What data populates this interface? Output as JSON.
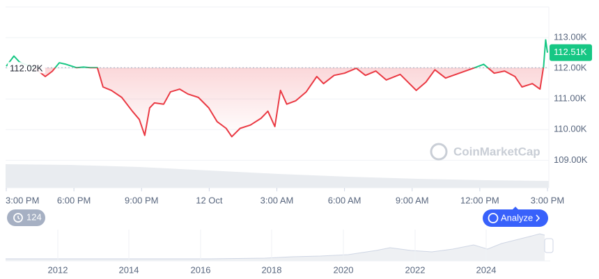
{
  "chart_data": {
    "type": "line",
    "x": [
      0,
      0.34,
      0.59,
      1.27,
      1.73,
      2.04,
      2.35,
      2.65,
      3.12,
      3.43,
      3.73,
      4.04,
      4.29,
      4.66,
      5.12,
      5.59,
      5.9,
      6.14,
      6.36,
      6.57,
      6.98,
      7.28,
      7.69,
      8.06,
      8.52,
      8.98,
      9.35,
      9.75,
      10.0,
      10.37,
      10.83,
      11.3,
      11.6,
      11.91,
      12.16,
      12.44,
      12.84,
      13.3,
      13.77,
      14.07,
      14.54,
      15.0,
      15.52,
      15.93,
      16.39,
      16.85,
      17.47,
      18.18,
      18.61,
      19.01,
      19.48,
      20.09,
      20.71,
      21.17,
      21.64,
      22.1,
      22.56,
      22.87,
      23.33,
      23.67,
      23.83,
      23.92,
      24.0
    ],
    "values": [
      112.07,
      112.4,
      112.2,
      112.0,
      111.73,
      111.9,
      112.18,
      112.13,
      112.02,
      112.04,
      112.02,
      112.02,
      111.39,
      111.28,
      111.05,
      110.6,
      110.33,
      109.81,
      110.71,
      110.87,
      110.83,
      111.23,
      111.32,
      111.16,
      111.05,
      110.71,
      110.26,
      110.04,
      109.77,
      110.04,
      110.15,
      110.37,
      110.6,
      110.1,
      111.28,
      110.83,
      110.94,
      111.23,
      111.73,
      111.5,
      111.77,
      111.84,
      112.0,
      111.77,
      111.91,
      111.62,
      111.8,
      111.28,
      111.55,
      111.95,
      111.68,
      111.84,
      112.0,
      112.13,
      111.84,
      111.91,
      111.73,
      111.39,
      111.5,
      111.32,
      112.07,
      112.93,
      112.51
    ],
    "xlim": [
      0,
      24
    ],
    "xticks": [
      {
        "value": 0,
        "label": "3:00 PM"
      },
      {
        "value": 3,
        "label": "6:00 PM"
      },
      {
        "value": 6,
        "label": "9:00 PM"
      },
      {
        "value": 9,
        "label": "12 Oct"
      },
      {
        "value": 12,
        "label": "3:00 AM"
      },
      {
        "value": 15,
        "label": "6:00 AM"
      },
      {
        "value": 18,
        "label": "9:00 AM"
      },
      {
        "value": 21,
        "label": "12:00 PM"
      },
      {
        "value": 24,
        "label": "3:00 PM"
      }
    ],
    "ylim": [
      108.1,
      114
    ],
    "yticks": [
      {
        "value": 113,
        "label": "113.00K"
      },
      {
        "value": 112,
        "label": "112.00K"
      },
      {
        "value": 111,
        "label": "111.00K"
      },
      {
        "value": 110,
        "label": "110.00K"
      },
      {
        "value": 109,
        "label": "109.00K"
      }
    ],
    "baseline": {
      "value": 112.02,
      "label": "112.02K"
    },
    "last": {
      "value": 112.51,
      "label": "112.51K"
    },
    "colors": {
      "up": "#16c784",
      "down": "#ea3943"
    },
    "grid": true
  },
  "navigator": {
    "labels": [
      "2012",
      "2014",
      "2016",
      "2018",
      "2020",
      "2022",
      "2024"
    ]
  },
  "controls": {
    "history": "124",
    "analyze": "Analyze"
  },
  "watermark": "CoinMarketCap"
}
